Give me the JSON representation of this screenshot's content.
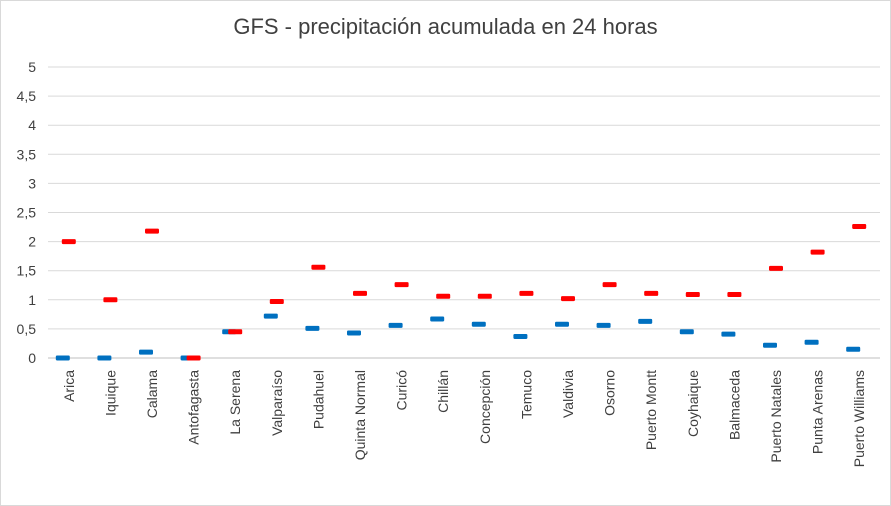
{
  "chart_data": {
    "type": "scatter",
    "title": "GFS - precipitación acumulada en 24 horas",
    "xlabel": "",
    "ylabel": "",
    "ylim": [
      0,
      5
    ],
    "yticks": [
      "0",
      "0,5",
      "1",
      "1,5",
      "2",
      "2,5",
      "3",
      "3,5",
      "4",
      "4,5",
      "5"
    ],
    "grid": true,
    "legend": "none",
    "categories": [
      "Arica",
      "Iquique",
      "Calama",
      "Antofagasta",
      "La Serena",
      "Valparaíso",
      "Pudahuel",
      "Quinta Normal",
      "Curicó",
      "Chillán",
      "Concepción",
      "Temuco",
      "Valdivia",
      "Osorno",
      "Puerto Montt",
      "Coyhaique",
      "Balmaceda",
      "Puerto Natales",
      "Punta Arenas",
      "Puerto Williams"
    ],
    "series": [
      {
        "color": "#0070C0",
        "values": [
          0.0,
          0.0,
          0.1,
          0.0,
          0.45,
          0.72,
          0.51,
          0.43,
          0.56,
          0.67,
          0.58,
          0.37,
          0.58,
          0.56,
          0.63,
          0.45,
          0.41,
          0.22,
          0.27,
          0.15
        ]
      },
      {
        "color": "#FF0000",
        "values": [
          2.0,
          1.0,
          2.18,
          0.0,
          0.45,
          0.97,
          1.56,
          1.11,
          1.26,
          1.06,
          1.06,
          1.11,
          1.02,
          1.26,
          1.11,
          1.09,
          1.09,
          1.54,
          1.82,
          2.26
        ]
      }
    ]
  }
}
